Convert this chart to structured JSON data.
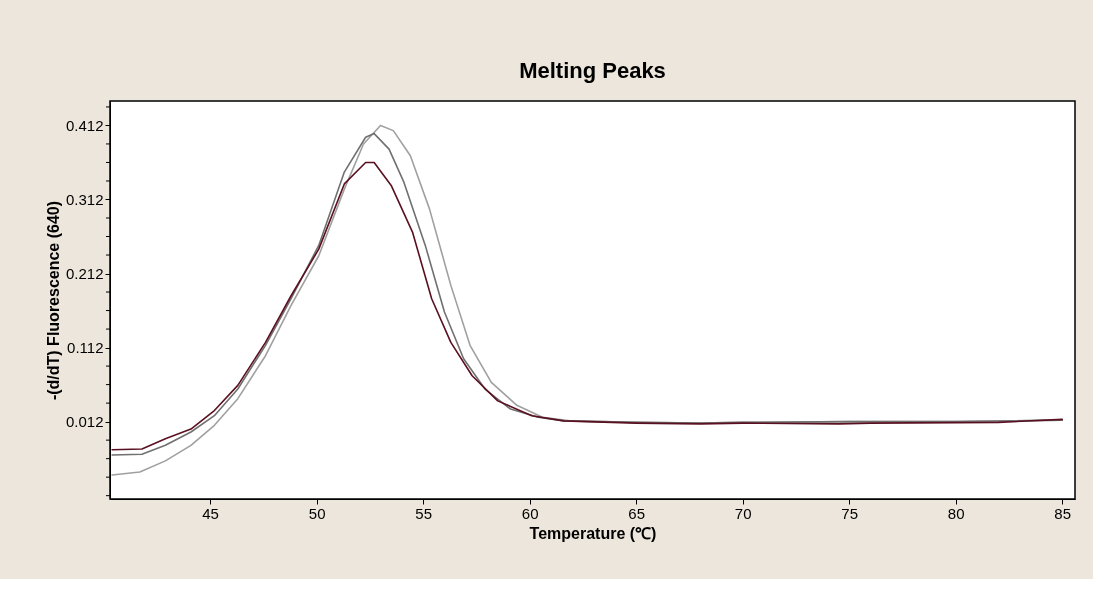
{
  "chart_data": {
    "type": "line",
    "title": "Melting Peaks",
    "xlabel": "Temperature (℃)",
    "ylabel": "-(d/dT) Fluorescence (640)",
    "xlim": [
      40.3,
      85.6
    ],
    "xticks": [
      45,
      50,
      55,
      60,
      65,
      70,
      75,
      80,
      85
    ],
    "ylim": [
      -0.0925,
      0.445
    ],
    "yticks": [
      {
        "value": -0.088,
        "label": null
      },
      {
        "value": -0.063,
        "label": null
      },
      {
        "value": -0.038,
        "label": null
      },
      {
        "value": -0.013,
        "label": null
      },
      0.012,
      {
        "value": 0.037,
        "label": null
      },
      {
        "value": 0.062,
        "label": null
      },
      {
        "value": 0.087,
        "label": null
      },
      0.112,
      {
        "value": 0.137,
        "label": null
      },
      {
        "value": 0.162,
        "label": null
      },
      {
        "value": 0.187,
        "label": null
      },
      0.212,
      {
        "value": 0.237,
        "label": null
      },
      {
        "value": 0.262,
        "label": null
      },
      {
        "value": 0.287,
        "label": null
      },
      0.312,
      {
        "value": 0.337,
        "label": null
      },
      {
        "value": 0.362,
        "label": null
      },
      {
        "value": 0.387,
        "label": null
      },
      0.412,
      {
        "value": 0.437,
        "label": null
      }
    ],
    "grid": false,
    "marker": "none",
    "line_style": "solid",
    "series": [
      {
        "color": "#a0a0a0",
        "x": [
          40.4,
          41.7,
          42.9,
          44.1,
          45.2,
          46.3,
          47.6,
          48.8,
          50.1,
          51.3,
          52.2,
          53.0,
          53.6,
          54.4,
          55.3,
          56.3,
          57.2,
          58.2,
          59.4,
          60.6,
          61.9,
          65,
          68,
          70,
          75,
          80,
          85
        ],
        "values": [
          -0.06,
          -0.056,
          -0.041,
          -0.02,
          0.007,
          0.043,
          0.101,
          0.169,
          0.236,
          0.326,
          0.387,
          0.412,
          0.405,
          0.371,
          0.299,
          0.196,
          0.115,
          0.065,
          0.034,
          0.018,
          0.013,
          0.011,
          0.01,
          0.011,
          0.012,
          0.012,
          0.014
        ]
      },
      {
        "color": "#707070",
        "x": [
          40.4,
          41.8,
          42.9,
          44.1,
          45.2,
          46.3,
          47.6,
          48.8,
          50.1,
          51.3,
          52.3,
          52.7,
          53.4,
          54.1,
          55.1,
          56.0,
          56.9,
          57.9,
          59.1,
          60.4,
          61.6,
          65,
          68,
          70,
          75,
          80,
          85
        ],
        "values": [
          -0.033,
          -0.032,
          -0.02,
          -0.002,
          0.02,
          0.056,
          0.115,
          0.178,
          0.25,
          0.349,
          0.396,
          0.401,
          0.38,
          0.335,
          0.25,
          0.16,
          0.097,
          0.056,
          0.029,
          0.018,
          0.013,
          0.011,
          0.01,
          0.011,
          0.012,
          0.012,
          0.014
        ]
      },
      {
        "color": "#5a1020",
        "x": [
          40.4,
          41.8,
          42.9,
          44.1,
          45.2,
          46.3,
          47.6,
          48.8,
          50.1,
          51.3,
          52.3,
          52.7,
          53.5,
          54.5,
          55.4,
          56.3,
          57.3,
          58.5,
          60.1,
          61.6,
          65,
          68,
          70,
          74.5,
          76,
          82,
          85
        ],
        "values": [
          -0.026,
          -0.025,
          -0.011,
          0.002,
          0.027,
          0.061,
          0.119,
          0.182,
          0.245,
          0.333,
          0.362,
          0.362,
          0.331,
          0.268,
          0.178,
          0.119,
          0.074,
          0.04,
          0.02,
          0.013,
          0.01,
          0.009,
          0.01,
          0.009,
          0.01,
          0.011,
          0.015
        ]
      }
    ]
  }
}
